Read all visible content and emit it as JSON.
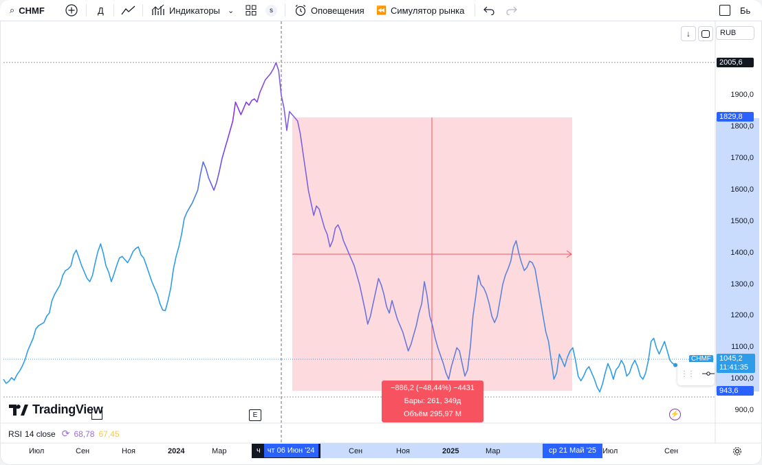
{
  "toolbar": {
    "symbol": "CHMF",
    "interval": "Д",
    "indicators_label": "Индикаторы",
    "s_label": "s",
    "alerts_label": "Оповещения",
    "replay_label": "Симулятор рынка",
    "right_cut": "Бь"
  },
  "price_scale": {
    "currency": "RUB",
    "ticks": [
      "1900,0",
      "1800,0",
      "1700,0",
      "1600,0",
      "1500,0",
      "1400,0",
      "1300,0",
      "1200,0",
      "1100,0",
      "1000,0",
      "900,0"
    ],
    "high_tag": "2005,6",
    "top_range_tag": "1829,8",
    "current_price": "1045,2",
    "current_time": "11:41:35",
    "symbol_tag": "CHMF",
    "low_tag": "943,6"
  },
  "measure": {
    "line1": "−886,2 (−48,44%) −4431",
    "line2": "Бары: 261, 349д",
    "line3": "Объём 295,97 М"
  },
  "indicator": {
    "name": "RSI",
    "params": "14 close",
    "value1": "68,78",
    "value2": "67,45"
  },
  "logo": "TradingView",
  "earnings_label": "E",
  "time_axis": {
    "labels": [
      {
        "t": "Июл",
        "bold": false
      },
      {
        "t": "Сен",
        "bold": false
      },
      {
        "t": "Ноя",
        "bold": false
      },
      {
        "t": "2024",
        "bold": true
      },
      {
        "t": "Мар",
        "bold": false
      },
      {
        "t": "Сен",
        "bold": false
      },
      {
        "t": "Ноя",
        "bold": false
      },
      {
        "t": "2025",
        "bold": true
      },
      {
        "t": "Мар",
        "bold": false
      },
      {
        "t": "Июл",
        "bold": false
      },
      {
        "t": "Сен",
        "bold": false
      }
    ],
    "crosshair_label": "чт 06 Июн '24",
    "range_end_label": "ср 21 Май '25",
    "cut_left": "ч"
  },
  "chart_data": {
    "type": "line",
    "series": [
      {
        "values": [
          1000,
          987,
          993,
          1005,
          997,
          1014,
          1026,
          1042,
          1062,
          1090,
          1110,
          1130,
          1160,
          1170,
          1175,
          1180,
          1200,
          1210,
          1250,
          1270,
          1285,
          1300,
          1330,
          1345,
          1350,
          1360,
          1395,
          1410,
          1385,
          1360,
          1340,
          1320,
          1310,
          1330,
          1370,
          1405,
          1430,
          1400,
          1360,
          1340,
          1310,
          1335,
          1362,
          1385,
          1390,
          1380,
          1370,
          1385,
          1405,
          1415,
          1420,
          1395,
          1385,
          1360,
          1335,
          1310,
          1290,
          1270,
          1240,
          1220,
          1218,
          1250,
          1290,
          1350,
          1390,
          1420,
          1460,
          1510,
          1530,
          1545,
          1560,
          1580,
          1600,
          1650,
          1690,
          1670,
          1640,
          1620,
          1600,
          1625,
          1660,
          1700,
          1730,
          1760,
          1790,
          1820,
          1880,
          1860,
          1840,
          1860,
          1880,
          1870,
          1885,
          1890,
          1880,
          1910,
          1930,
          1950,
          1960,
          1970,
          1985,
          2005,
          1980,
          1900,
          1860,
          1790,
          1850,
          1840,
          1830,
          1820,
          1780,
          1720,
          1660,
          1600,
          1560,
          1520,
          1550,
          1540,
          1510,
          1480,
          1460,
          1420,
          1440,
          1480,
          1490,
          1470,
          1440,
          1420,
          1400,
          1380,
          1360,
          1330,
          1300,
          1260,
          1220,
          1175,
          1200,
          1240,
          1280,
          1320,
          1300,
          1270,
          1230,
          1210,
          1250,
          1220,
          1190,
          1170,
          1150,
          1120,
          1090,
          1110,
          1140,
          1170,
          1210,
          1240,
          1310,
          1265,
          1200,
          1170,
          1130,
          1100,
          1075,
          1050,
          1020,
          1000,
          1040,
          1070,
          1100,
          1090,
          1050,
          1010,
          1030,
          1100,
          1200,
          1260,
          1330,
          1300,
          1290,
          1270,
          1240,
          1200,
          1180,
          1200,
          1250,
          1300,
          1330,
          1350,
          1375,
          1420,
          1440,
          1400,
          1370,
          1345,
          1355,
          1375,
          1370,
          1350,
          1300,
          1250,
          1200,
          1150,
          1120,
          1060,
          1000,
          1020,
          1080,
          1060,
          1040,
          1070,
          1090,
          1100,
          1060,
          1010,
          995,
          1010,
          1030,
          1040,
          1020,
          1000,
          975,
          960,
          985,
          1020,
          1050,
          1030,
          1000,
          1030,
          1040,
          1060,
          1045,
          1010,
          1020,
          1045,
          1060,
          1040,
          1010,
          1000,
          1020,
          1060,
          1120,
          1130,
          1100,
          1080,
          1100,
          1120,
          1090,
          1060,
          1050,
          1045
        ],
        "segments": [
          "pre",
          "highlight",
          "post"
        ]
      }
    ],
    "ylim": [
      900,
      2020
    ],
    "x_range_labels": [
      "Июл",
      "Сен",
      "Ноя",
      "2024",
      "Мар",
      "Июн '24",
      "Сен",
      "Ноя",
      "2025",
      "Мар",
      "Май '25",
      "Июл",
      "Сен"
    ]
  },
  "colors": {
    "line_blue": "#2e9ce8",
    "line_purple": "#8a32e8",
    "range_fill": "#fcdadd",
    "range_line": "#f7525f",
    "measure_label": "#f7525f",
    "scale_highlight": "#c9dcfd",
    "price_tag_blue": "#2e9ce8",
    "rsi_purple": "#9c6ade",
    "rsi_yellow": "#f7c949"
  }
}
